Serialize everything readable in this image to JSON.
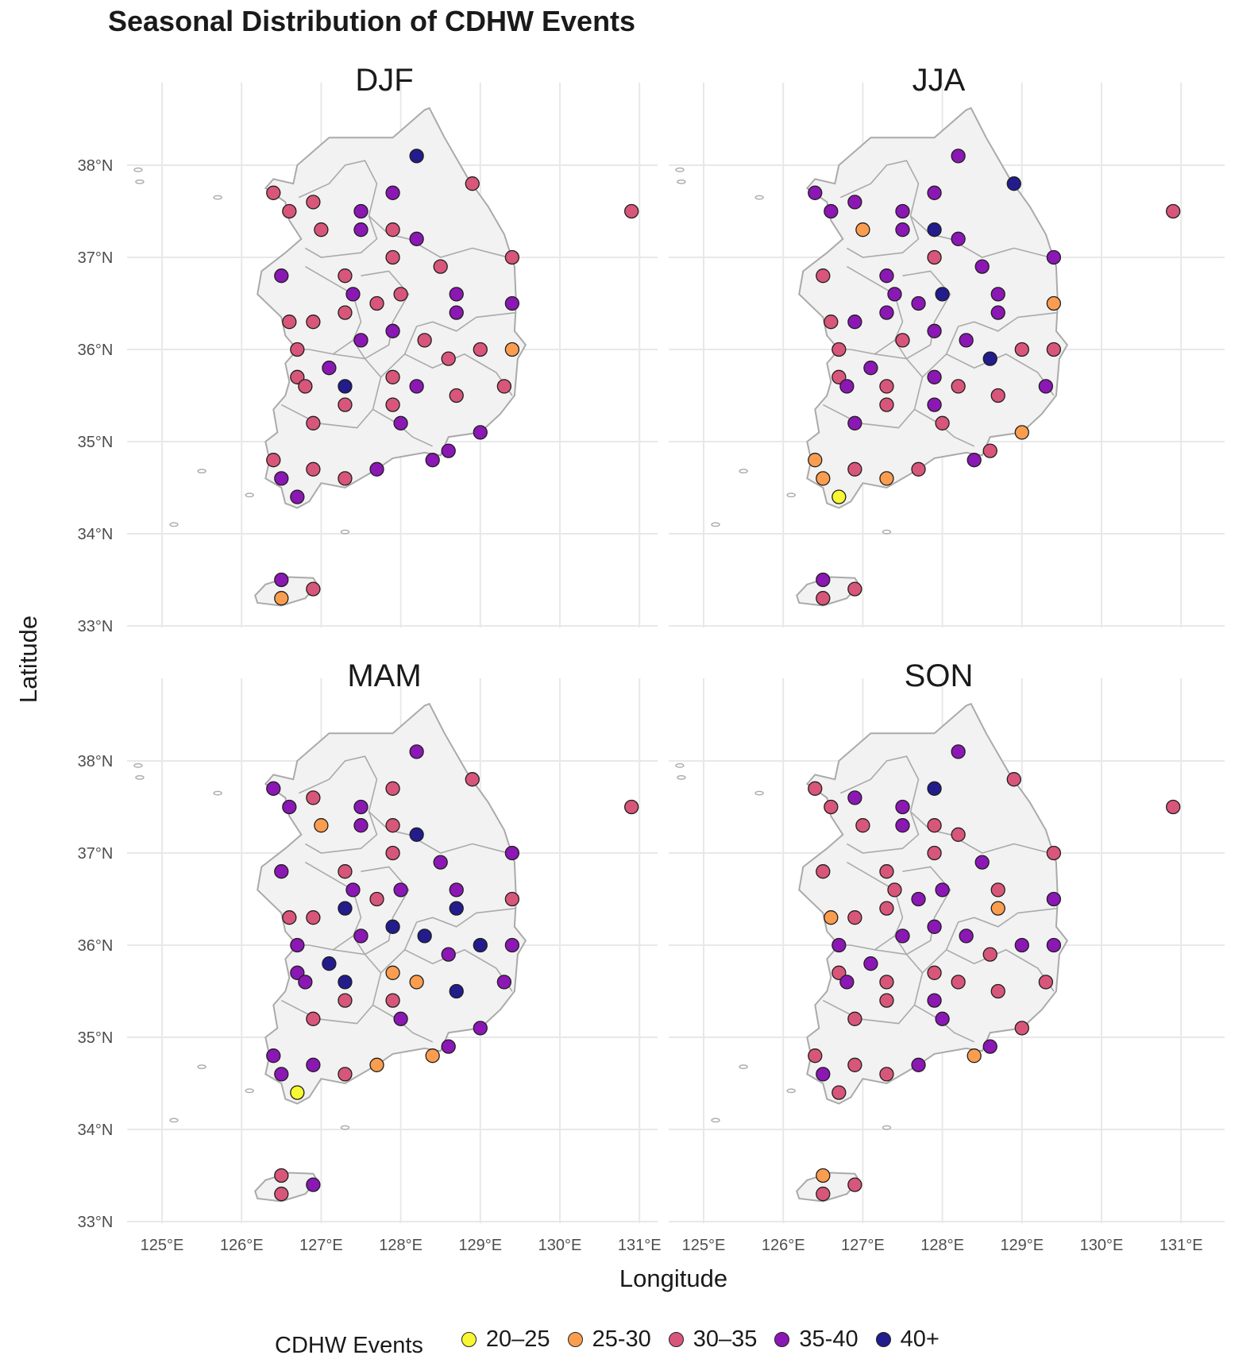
{
  "title": "Seasonal Distribution of CDHW Events",
  "axes": {
    "xlabel": "Longitude",
    "ylabel": "Latitude"
  },
  "colors": {
    "land": "#f2f2f2",
    "border": "#aaaaaa",
    "grid": "#e8e8e8",
    "20–25": "#f7f733",
    "25-30": "#fb9d4f",
    "30–35": "#d8567a",
    "35-40": "#8b17b4",
    "40+": "#221c8c"
  },
  "legend": {
    "title": "CDHW Events",
    "items": [
      {
        "label": "20–25",
        "color": "#f7f733"
      },
      {
        "label": "25-30",
        "color": "#fb9d4f"
      },
      {
        "label": "30–35",
        "color": "#d8567a"
      },
      {
        "label": "35-40",
        "color": "#8b17b4"
      },
      {
        "label": "40+",
        "color": "#221c8c"
      }
    ]
  },
  "chart_data": {
    "type": "scatter",
    "subtype": "faceted geographic point map",
    "facets": [
      "DJF",
      "JJA",
      "MAM",
      "SON"
    ],
    "x_ticks": [
      "125°E",
      "126°E",
      "127°E",
      "128°E",
      "129°E",
      "130°E",
      "131°E"
    ],
    "y_ticks": [
      "33°N",
      "34°N",
      "35°N",
      "36°N",
      "37°N",
      "38°N"
    ],
    "xlim": [
      124.3,
      131.3
    ],
    "ylim": [
      32.9,
      38.8
    ],
    "stations": [
      [
        126.4,
        37.7
      ],
      [
        126.6,
        37.5
      ],
      [
        126.9,
        37.6
      ],
      [
        127.0,
        37.3
      ],
      [
        127.5,
        37.5
      ],
      [
        127.5,
        37.3
      ],
      [
        127.9,
        37.7
      ],
      [
        127.9,
        37.3
      ],
      [
        128.2,
        38.1
      ],
      [
        128.9,
        37.8
      ],
      [
        130.9,
        37.5
      ],
      [
        128.2,
        37.2
      ],
      [
        127.9,
        37.0
      ],
      [
        129.4,
        37.0
      ],
      [
        128.5,
        36.9
      ],
      [
        126.5,
        36.8
      ],
      [
        127.3,
        36.8
      ],
      [
        127.4,
        36.6
      ],
      [
        128.0,
        36.6
      ],
      [
        128.7,
        36.6
      ],
      [
        129.4,
        36.5
      ],
      [
        127.7,
        36.5
      ],
      [
        126.6,
        36.3
      ],
      [
        126.9,
        36.3
      ],
      [
        127.3,
        36.4
      ],
      [
        127.5,
        36.1
      ],
      [
        127.9,
        36.2
      ],
      [
        128.3,
        36.1
      ],
      [
        128.7,
        36.4
      ],
      [
        126.7,
        36.0
      ],
      [
        127.1,
        35.8
      ],
      [
        127.3,
        35.6
      ],
      [
        126.7,
        35.7
      ],
      [
        126.8,
        35.6
      ],
      [
        127.3,
        35.4
      ],
      [
        127.9,
        35.7
      ],
      [
        128.2,
        35.6
      ],
      [
        127.9,
        35.4
      ],
      [
        128.6,
        35.9
      ],
      [
        129.0,
        36.0
      ],
      [
        129.4,
        36.0
      ],
      [
        128.7,
        35.5
      ],
      [
        129.3,
        35.6
      ],
      [
        126.9,
        35.2
      ],
      [
        128.0,
        35.2
      ],
      [
        129.0,
        35.1
      ],
      [
        126.4,
        34.8
      ],
      [
        126.5,
        34.6
      ],
      [
        126.7,
        34.4
      ],
      [
        126.9,
        34.7
      ],
      [
        127.3,
        34.6
      ],
      [
        127.7,
        34.7
      ],
      [
        128.4,
        34.8
      ],
      [
        128.6,
        34.9
      ],
      [
        126.5,
        33.5
      ],
      [
        126.5,
        33.3
      ],
      [
        126.9,
        33.4
      ]
    ],
    "values": {
      "DJF": [
        "30–35",
        "30–35",
        "30–35",
        "30–35",
        "35-40",
        "35-40",
        "35-40",
        "30–35",
        "40+",
        "30–35",
        "30–35",
        "35-40",
        "30–35",
        "30–35",
        "30–35",
        "35-40",
        "30–35",
        "35-40",
        "30–35",
        "35-40",
        "35-40",
        "30–35",
        "30–35",
        "30–35",
        "30–35",
        "35-40",
        "35-40",
        "30–35",
        "35-40",
        "30–35",
        "35-40",
        "40+",
        "30–35",
        "30–35",
        "30–35",
        "30–35",
        "35-40",
        "30–35",
        "30–35",
        "30–35",
        "25-30",
        "30–35",
        "30–35",
        "30–35",
        "35-40",
        "35-40",
        "30–35",
        "35-40",
        "35-40",
        "30–35",
        "30–35",
        "35-40",
        "35-40",
        "35-40",
        "35-40",
        "25-30",
        "30–35"
      ],
      "JJA": [
        "35-40",
        "35-40",
        "35-40",
        "25-30",
        "35-40",
        "35-40",
        "35-40",
        "40+",
        "35-40",
        "40+",
        "30–35",
        "35-40",
        "30–35",
        "35-40",
        "35-40",
        "30–35",
        "35-40",
        "35-40",
        "40+",
        "35-40",
        "25-30",
        "35-40",
        "30–35",
        "35-40",
        "35-40",
        "30–35",
        "35-40",
        "35-40",
        "35-40",
        "30–35",
        "35-40",
        "30–35",
        "30–35",
        "35-40",
        "30–35",
        "35-40",
        "30–35",
        "35-40",
        "40+",
        "30–35",
        "30–35",
        "30–35",
        "35-40",
        "35-40",
        "30–35",
        "25-30",
        "25-30",
        "25-30",
        "20–25",
        "30–35",
        "25-30",
        "30–35",
        "35-40",
        "30–35",
        "35-40",
        "30–35",
        "30–35"
      ],
      "MAM": [
        "35-40",
        "35-40",
        "30–35",
        "25-30",
        "35-40",
        "35-40",
        "30–35",
        "30–35",
        "35-40",
        "30–35",
        "30–35",
        "40+",
        "30–35",
        "35-40",
        "35-40",
        "35-40",
        "30–35",
        "35-40",
        "35-40",
        "35-40",
        "30–35",
        "30–35",
        "30–35",
        "30–35",
        "40+",
        "35-40",
        "40+",
        "40+",
        "40+",
        "35-40",
        "40+",
        "40+",
        "35-40",
        "35-40",
        "30–35",
        "25-30",
        "25-30",
        "30–35",
        "35-40",
        "40+",
        "35-40",
        "40+",
        "35-40",
        "30–35",
        "35-40",
        "35-40",
        "35-40",
        "35-40",
        "20–25",
        "35-40",
        "30–35",
        "25-30",
        "25-30",
        "35-40",
        "30–35",
        "30–35",
        "35-40"
      ],
      "SON": [
        "30–35",
        "30–35",
        "35-40",
        "30–35",
        "35-40",
        "35-40",
        "40+",
        "30–35",
        "35-40",
        "30–35",
        "30–35",
        "30–35",
        "30–35",
        "30–35",
        "35-40",
        "30–35",
        "30–35",
        "30–35",
        "35-40",
        "30–35",
        "35-40",
        "35-40",
        "25-30",
        "30–35",
        "30–35",
        "35-40",
        "35-40",
        "35-40",
        "25-30",
        "35-40",
        "35-40",
        "30–35",
        "30–35",
        "35-40",
        "30–35",
        "30–35",
        "30–35",
        "35-40",
        "30–35",
        "35-40",
        "35-40",
        "30–35",
        "30–35",
        "30–35",
        "35-40",
        "30–35",
        "30–35",
        "35-40",
        "30–35",
        "30–35",
        "30–35",
        "35-40",
        "25-30",
        "35-40",
        "25-30",
        "30–35",
        "30–35"
      ]
    }
  }
}
